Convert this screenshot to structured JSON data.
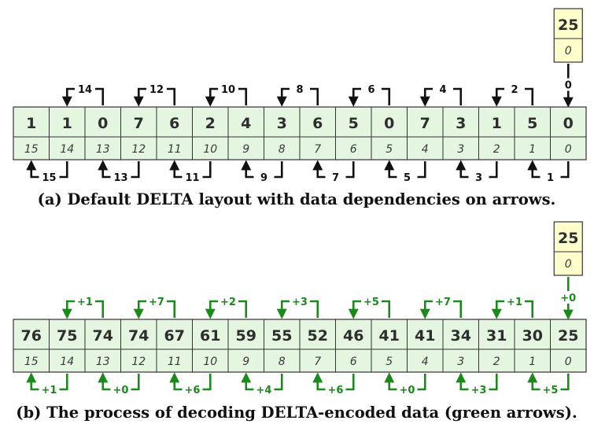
{
  "panel_a": {
    "base": {
      "value": "25",
      "index": "0"
    },
    "base_arrow_label": "0",
    "values": [
      "1",
      "1",
      "0",
      "7",
      "6",
      "2",
      "4",
      "3",
      "6",
      "5",
      "0",
      "7",
      "3",
      "1",
      "5",
      "0"
    ],
    "indices": [
      "15",
      "14",
      "13",
      "12",
      "11",
      "10",
      "9",
      "8",
      "7",
      "6",
      "5",
      "4",
      "3",
      "2",
      "1",
      "0"
    ],
    "top_labels": [
      "14",
      "12",
      "10",
      "8",
      "6",
      "4",
      "2"
    ],
    "bottom_labels": [
      "15",
      "13",
      "11",
      "9",
      "7",
      "5",
      "3",
      "1"
    ],
    "caption": "(a) Default DELTA layout with data dependencies on arrows."
  },
  "panel_b": {
    "base": {
      "value": "25",
      "index": "0"
    },
    "base_arrow_label": "+0",
    "values": [
      "76",
      "75",
      "74",
      "74",
      "67",
      "61",
      "59",
      "55",
      "52",
      "46",
      "41",
      "41",
      "34",
      "31",
      "30",
      "25"
    ],
    "indices": [
      "15",
      "14",
      "13",
      "12",
      "11",
      "10",
      "9",
      "8",
      "7",
      "6",
      "5",
      "4",
      "3",
      "2",
      "1",
      "0"
    ],
    "top_labels": [
      "+1",
      "+7",
      "+2",
      "+3",
      "+5",
      "+7",
      "+1"
    ],
    "bottom_labels": [
      "+1",
      "+0",
      "+6",
      "+4",
      "+6",
      "+0",
      "+3",
      "+5"
    ],
    "caption": "(b) The process of decoding DELTA-encoded data (green arrows)."
  },
  "colors": {
    "cell_fill": "#e4f5e0",
    "base_fill": "#ffffcc",
    "arrow_a": "#111111",
    "arrow_b": "#1a8a1a"
  }
}
